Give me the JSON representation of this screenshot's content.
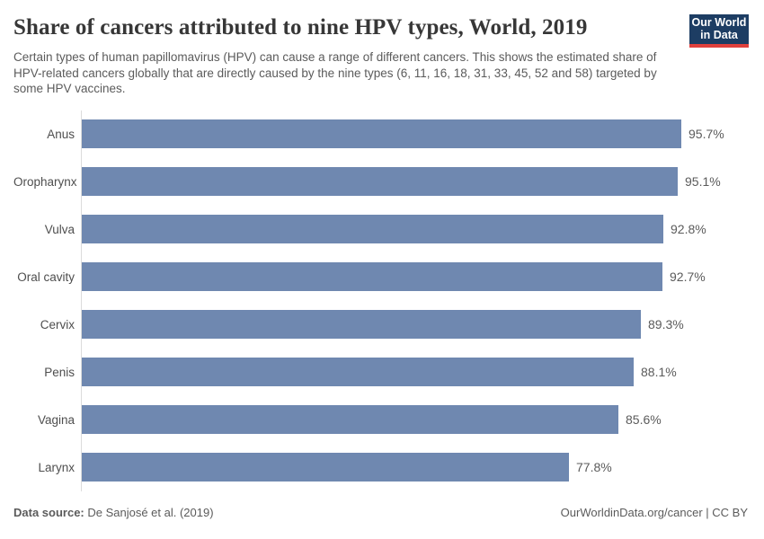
{
  "header": {
    "title": "Share of cancers attributed to nine HPV types, World, 2019",
    "subtitle": "Certain types of human papillomavirus (HPV) can cause a range of different cancers. This shows the estimated share of HPV-related cancers globally that are directly caused by the nine types (6, 11, 16, 18, 31, 33, 45, 52 and 58) targeted by some HPV vaccines.",
    "logo": {
      "line1": "Our World",
      "line2": "in Data",
      "bg_color": "#1d3d63",
      "stripe_color": "#e0403c"
    }
  },
  "chart_data": {
    "type": "bar",
    "orientation": "horizontal",
    "title": "Share of cancers attributed to nine HPV types, World, 2019",
    "categories": [
      "Anus",
      "Oropharynx",
      "Vulva",
      "Oral cavity",
      "Cervix",
      "Penis",
      "Vagina",
      "Larynx"
    ],
    "values": [
      95.7,
      95.1,
      92.8,
      92.7,
      89.3,
      88.1,
      85.6,
      77.8
    ],
    "value_labels": [
      "95.7%",
      "95.1%",
      "92.8%",
      "92.7%",
      "89.3%",
      "88.1%",
      "85.6%",
      "77.8%"
    ],
    "xlabel": "",
    "ylabel": "",
    "xlim": [
      0,
      100
    ],
    "grid": false,
    "legend": false,
    "bar_color": "#6f88b0"
  },
  "footer": {
    "source_label": "Data source:",
    "source_value": " De Sanjosé et al. (2019)",
    "license": "OurWorldinData.org/cancer | CC BY"
  }
}
